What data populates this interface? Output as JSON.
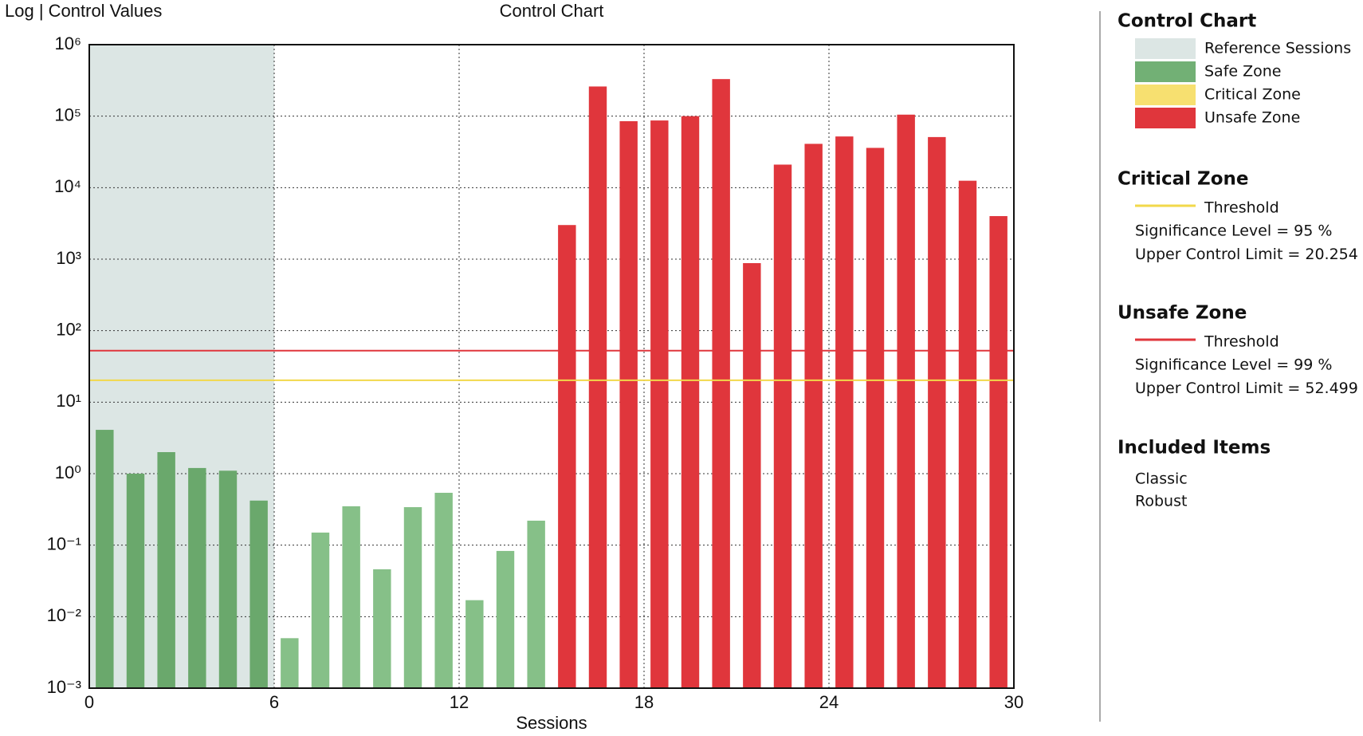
{
  "chart_data": {
    "type": "bar",
    "title": "Control Chart",
    "y_label": "Log | Control Values",
    "x_label": "Sessions",
    "log_y": true,
    "grid": true,
    "xlim": [
      0,
      30
    ],
    "xticks": [
      0,
      6,
      12,
      18,
      24,
      30
    ],
    "ylim": [
      0.001,
      1000000
    ],
    "yticks": [
      {
        "value": 0.001,
        "label": "10⁻³"
      },
      {
        "value": 0.01,
        "label": "10⁻²"
      },
      {
        "value": 0.1,
        "label": "10⁻¹"
      },
      {
        "value": 1,
        "label": "10⁰"
      },
      {
        "value": 10,
        "label": "10¹"
      },
      {
        "value": 100,
        "label": "10²"
      },
      {
        "value": 1000,
        "label": "10³"
      },
      {
        "value": 10000,
        "label": "10⁴"
      },
      {
        "value": 100000,
        "label": "10⁵"
      },
      {
        "value": 1000000,
        "label": "10⁶"
      }
    ],
    "reference_range": [
      0,
      6
    ],
    "values": [
      4.1,
      1.0,
      2.0,
      1.2,
      1.1,
      0.42,
      0.005,
      0.15,
      0.35,
      0.046,
      0.34,
      0.54,
      0.017,
      0.083,
      0.22,
      3000,
      260000,
      85000,
      87000,
      100000,
      330000,
      880,
      21000,
      41000,
      52000,
      36000,
      105000,
      51000,
      12500,
      4000
    ],
    "colors": [
      "#6aa86c",
      "#6aa86c",
      "#6aa86c",
      "#6aa86c",
      "#6aa86c",
      "#6aa86c",
      "#86c088",
      "#86c088",
      "#86c088",
      "#86c088",
      "#86c088",
      "#86c088",
      "#86c088",
      "#86c088",
      "#86c088",
      "#e0363c",
      "#e0363c",
      "#e0363c",
      "#e0363c",
      "#e0363c",
      "#e0363c",
      "#e0363c",
      "#e0363c",
      "#e0363c",
      "#e0363c",
      "#e0363c",
      "#e0363c",
      "#e0363c",
      "#e0363c",
      "#e0363c"
    ],
    "legend": {
      "title": "Control Chart",
      "items": [
        {
          "name": "Reference Sessions",
          "color": "#dce6e4"
        },
        {
          "name": "Safe Zone",
          "color": "#72b075"
        },
        {
          "name": "Critical Zone",
          "color": "#f7e070"
        },
        {
          "name": "Unsafe Zone",
          "color": "#e0363c"
        }
      ]
    },
    "thresholds": [
      {
        "title": "Critical Zone",
        "name": "Threshold",
        "color": "#f2d84a",
        "significance": "Significance Level = 95 %",
        "ucl_label": "Upper Control Limit =",
        "value": 20.254
      },
      {
        "title": "Unsafe Zone",
        "name": "Threshold",
        "color": "#e0363c",
        "significance": "Significance Level = 99 %",
        "ucl_label": "Upper Control Limit =",
        "value": 52.499
      }
    ],
    "included": {
      "title": "Included Items",
      "items": [
        "Classic",
        "Robust"
      ]
    }
  }
}
